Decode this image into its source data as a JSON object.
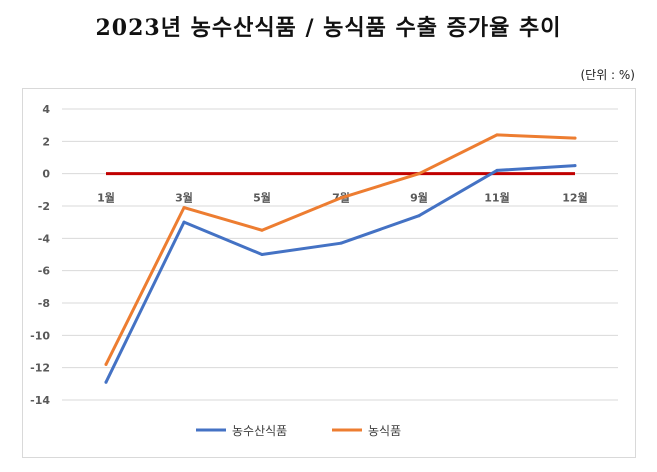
{
  "title": "2023년 농수산식품 / 농식품 수출 증가율 추이",
  "unit": "(단위 : %)",
  "colors": {
    "series1": "#4472C4",
    "series2": "#ED7D31",
    "zero_line": "#C00000",
    "grid": "#d9d9d9"
  },
  "chart_data": {
    "type": "line",
    "title": "2023년 농수산식품 / 농식품 수출 증가율 추이",
    "categories": [
      "1월",
      "3월",
      "5월",
      "7월",
      "9월",
      "11월",
      "12월"
    ],
    "series": [
      {
        "name": "농수산식품",
        "values": [
          -12.9,
          -3.0,
          -5.0,
          -4.3,
          -2.6,
          0.2,
          0.5
        ]
      },
      {
        "name": "농식품",
        "values": [
          -11.8,
          -2.1,
          -3.5,
          -1.5,
          0.0,
          2.4,
          2.2
        ]
      }
    ],
    "y_ticks": [
      4,
      2,
      0,
      -2,
      -4,
      -6,
      -8,
      -10,
      -12,
      -14
    ],
    "ylim": [
      -14,
      4
    ],
    "grid": true,
    "legend_position": "bottom",
    "xlabel": "",
    "ylabel": ""
  }
}
